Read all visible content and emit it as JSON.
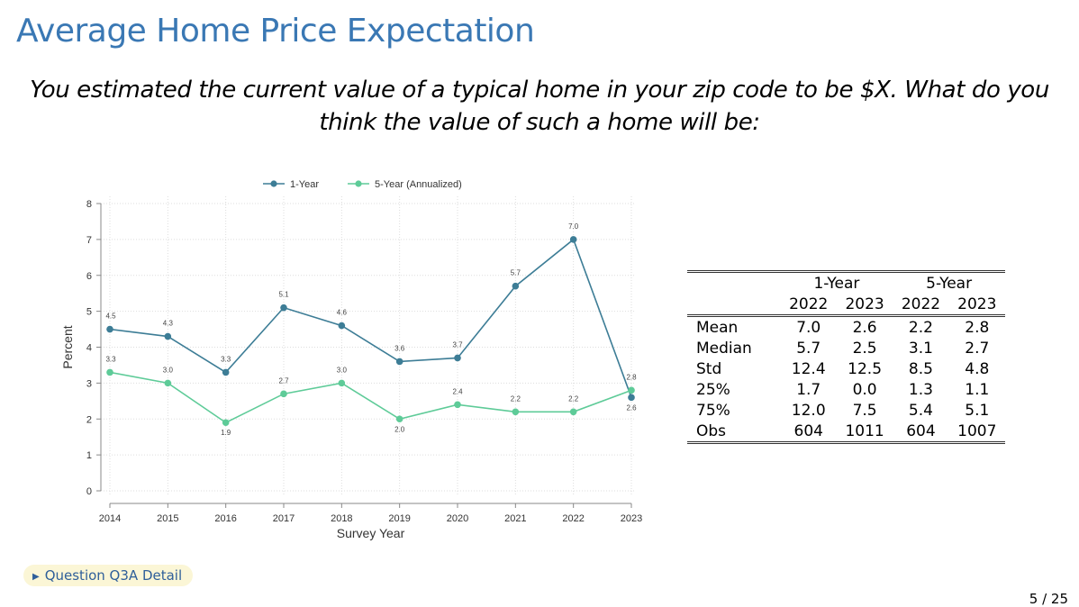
{
  "slide": {
    "title": "Average Home Price Expectation",
    "question": "You estimated the current value of a typical home in your zip code to be $X. What do you think the value of such a home will be:",
    "detail_link": "Question Q3A Detail",
    "page_number": "5 / 25"
  },
  "chart_data": {
    "type": "line",
    "x": [
      "2014",
      "2015",
      "2016",
      "2017",
      "2018",
      "2019",
      "2020",
      "2021",
      "2022",
      "2023"
    ],
    "series": [
      {
        "name": "1-Year",
        "values": [
          4.5,
          4.3,
          3.3,
          5.1,
          4.6,
          3.6,
          3.7,
          5.7,
          7.0,
          2.6
        ],
        "labels": [
          "4.5",
          "4.3",
          "3.3",
          "5.1",
          "4.6",
          "3.6",
          "3.7",
          "5.7",
          "7.0",
          "2.6"
        ],
        "color": "#3d7d96"
      },
      {
        "name": "5-Year (Annualized)",
        "values": [
          3.3,
          3.0,
          1.9,
          2.7,
          3.0,
          2.0,
          2.4,
          2.2,
          2.2,
          2.8
        ],
        "labels": [
          "3.3",
          "3.0",
          "1.9",
          "2.7",
          "3.0",
          "2.0",
          "2.4",
          "2.2",
          "2.2",
          "2.8"
        ],
        "color": "#5ecb98"
      }
    ],
    "xlabel": "Survey Year",
    "ylabel": "Percent",
    "ylim": [
      0,
      8
    ],
    "yticks": [
      "0",
      "1",
      "2",
      "3",
      "4",
      "5",
      "6",
      "7",
      "8"
    ],
    "grid": true,
    "legend": "top"
  },
  "table": {
    "group_headers": [
      "1-Year",
      "5-Year"
    ],
    "year_headers": [
      "2022",
      "2023",
      "2022",
      "2023"
    ],
    "rows": [
      {
        "label": "Mean",
        "values": [
          "7.0",
          "2.6",
          "2.2",
          "2.8"
        ]
      },
      {
        "label": "Median",
        "values": [
          "5.7",
          "2.5",
          "3.1",
          "2.7"
        ]
      },
      {
        "label": "Std",
        "values": [
          "12.4",
          "12.5",
          "8.5",
          "4.8"
        ]
      },
      {
        "label": "25%",
        "values": [
          "1.7",
          "0.0",
          "1.3",
          "1.1"
        ]
      },
      {
        "label": "75%",
        "values": [
          "12.0",
          "7.5",
          "5.4",
          "5.1"
        ]
      },
      {
        "label": "Obs",
        "values": [
          "604",
          "1011",
          "604",
          "1007"
        ]
      }
    ]
  }
}
